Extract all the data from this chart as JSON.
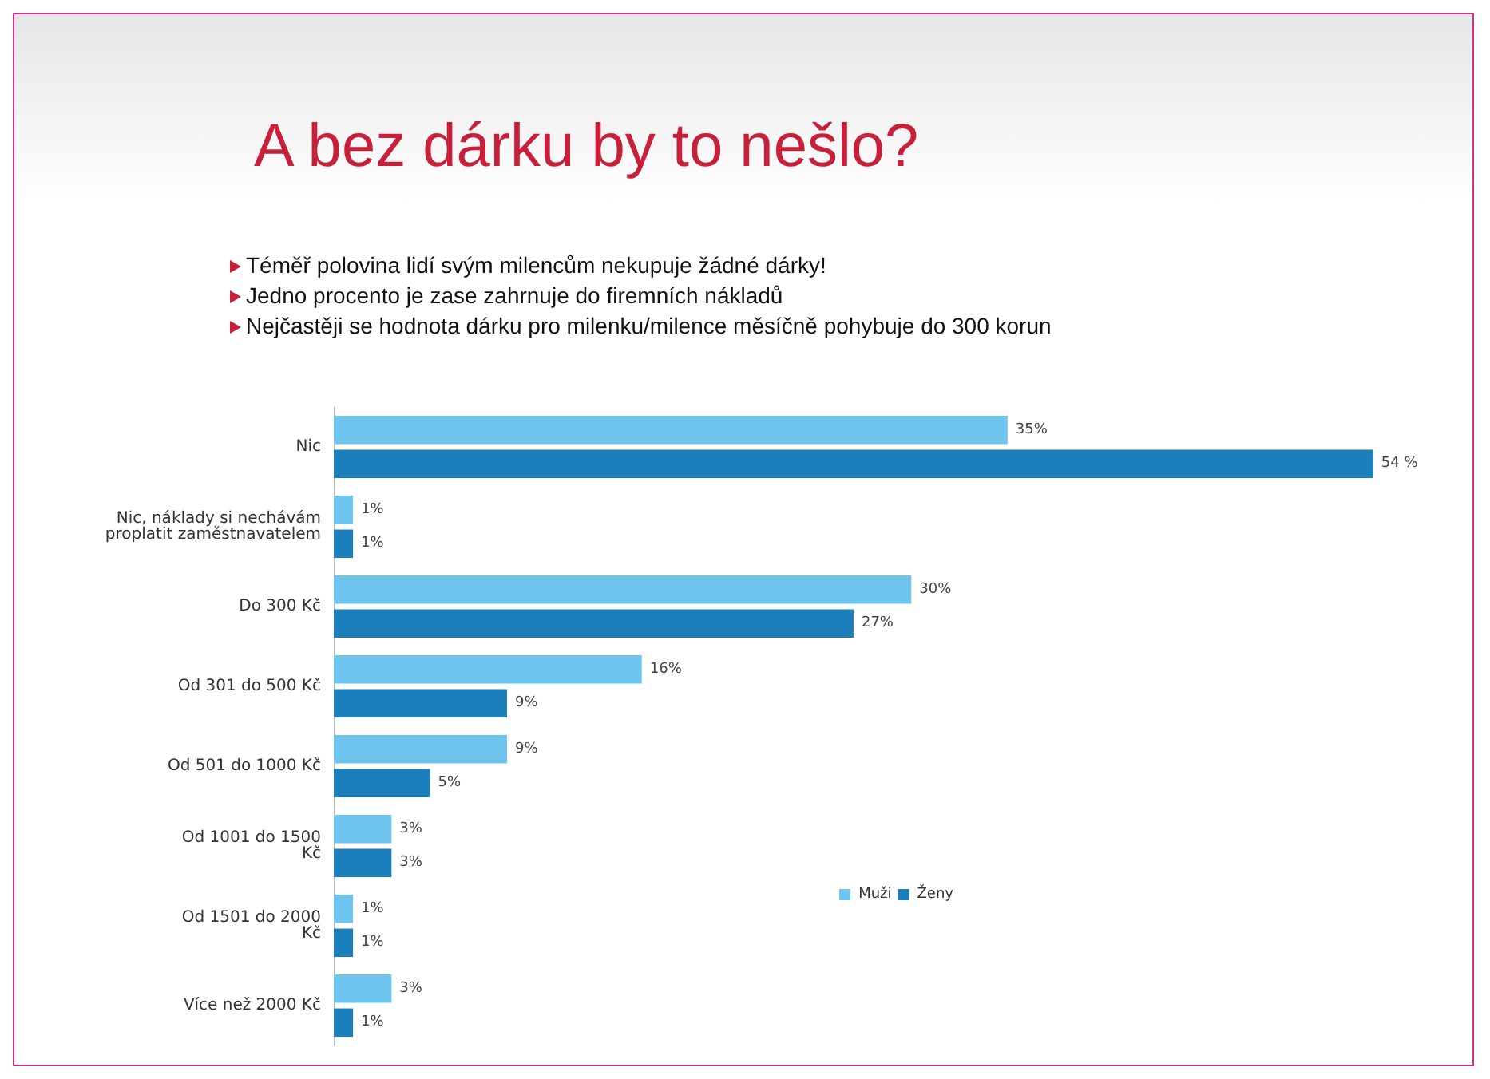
{
  "chart_data": {
    "type": "bar",
    "orientation": "horizontal",
    "title": "A bez dárku by to nešlo?",
    "annotations": [
      "Téměř polovina lidí svým milencům nekupuje žádné dárky!",
      "Jedno procento je zase zahrnuje do firemních nákladů",
      "Nejčastěji se hodnota dárku pro milenku/milence měsíčně pohybuje do 300 korun"
    ],
    "categories": [
      "Nic",
      "Nic, náklady si nechávám\nproplatit zaměstnavatelem",
      "Do 300 Kč",
      "Od 301 do 500 Kč",
      "Od 501 do 1000 Kč",
      "Od 1001 do 1500\nKč",
      "Od 1501 do 2000\nKč",
      "Více než 2000 Kč"
    ],
    "series": [
      {
        "name": "Muži",
        "color": "#6ec6ee",
        "values": [
          35,
          1,
          30,
          16,
          9,
          3,
          1,
          3
        ],
        "value_labels": [
          "35%",
          "1%",
          "30%",
          "16%",
          "9%",
          "3%",
          "1%",
          "3%"
        ]
      },
      {
        "name": "Ženy",
        "color": "#1a7fba",
        "values": [
          54,
          1,
          27,
          9,
          5,
          3,
          1,
          1
        ],
        "value_labels": [
          "54 %",
          "1%",
          "27%",
          "9%",
          "5%",
          "3%",
          "1%",
          "1%"
        ]
      }
    ],
    "legend": "bottom right"
  }
}
